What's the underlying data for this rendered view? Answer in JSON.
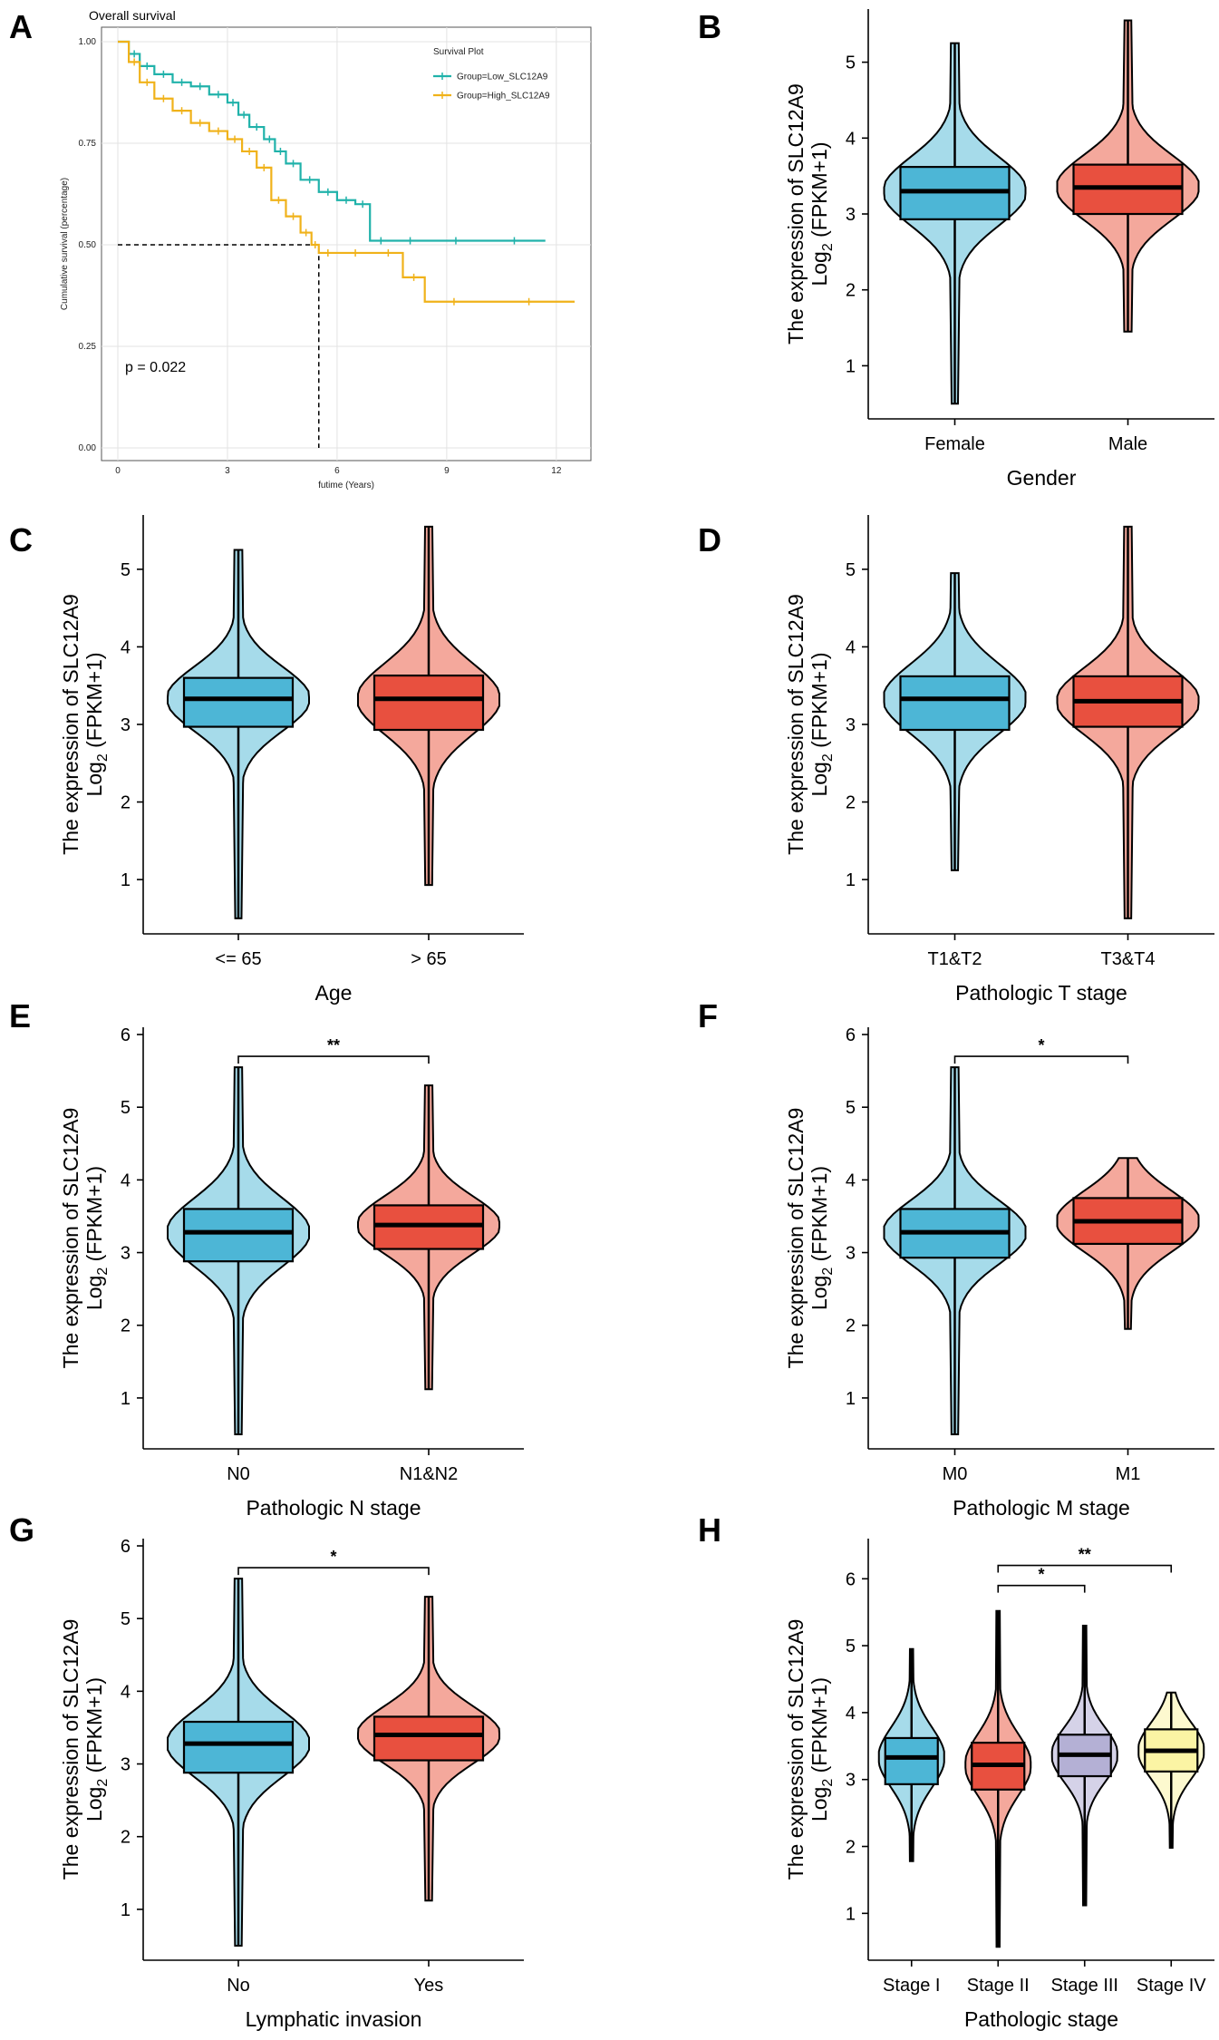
{
  "chart_data": [
    {
      "panel": "A",
      "type": "line",
      "title": "Overall survival",
      "xlabel": "futime (Years)",
      "ylabel": "Cumulative survival (percentage)",
      "xlim": [
        0,
        12.5
      ],
      "ylim": [
        0,
        1.0
      ],
      "xticks": [
        0,
        3,
        6,
        9,
        12
      ],
      "yticks": [
        "0.00",
        "0.25",
        "0.50",
        "0.75",
        "1.00"
      ],
      "legend_title": "Survival Plot",
      "legend_position": "top-right",
      "grid": true,
      "annotation": "p = 0.022",
      "median_line": {
        "y": 0.5,
        "x": 5.5
      },
      "series": [
        {
          "name": "Group=Low_SLC12A9",
          "color": "#20b2aa",
          "x": [
            0,
            0.3,
            0.6,
            1.0,
            1.5,
            2.0,
            2.5,
            3.0,
            3.3,
            3.6,
            4.0,
            4.3,
            4.6,
            5.0,
            5.5,
            6.0,
            6.5,
            6.9,
            7.5,
            8.5,
            10,
            11.7
          ],
          "y": [
            1.0,
            0.97,
            0.94,
            0.92,
            0.9,
            0.89,
            0.87,
            0.85,
            0.82,
            0.79,
            0.76,
            0.73,
            0.7,
            0.66,
            0.63,
            0.61,
            0.6,
            0.51,
            0.51,
            0.51,
            0.51,
            0.51
          ]
        },
        {
          "name": "Group=High_SLC12A9",
          "color": "#f0b21a",
          "x": [
            0,
            0.3,
            0.6,
            1.0,
            1.5,
            2.0,
            2.5,
            3.0,
            3.4,
            3.8,
            4.2,
            4.6,
            5.0,
            5.3,
            5.5,
            6.0,
            7.0,
            7.8,
            8.4,
            10,
            12.5
          ],
          "y": [
            1.0,
            0.95,
            0.9,
            0.86,
            0.83,
            0.8,
            0.78,
            0.76,
            0.73,
            0.69,
            0.61,
            0.57,
            0.53,
            0.5,
            0.48,
            0.48,
            0.48,
            0.42,
            0.36,
            0.36,
            0.36
          ]
        }
      ]
    },
    {
      "panel": "B",
      "type": "violin-box",
      "ylabel": "The expression of SLC12A9",
      "ylabel2": "Log",
      "ylabel2_sub": "2",
      "ylabel2_rest": " (FPKM+1)",
      "xlabel": "Gender",
      "ylim": [
        0.3,
        5.7
      ],
      "yticks": [
        1,
        2,
        3,
        4,
        5
      ],
      "significance": [],
      "groups": [
        {
          "label": "Female",
          "fill": "#4db6d6",
          "violin_fill": "#a6dbea",
          "min": 0.5,
          "q1": 2.93,
          "median": 3.3,
          "q3": 3.62,
          "max": 5.25
        },
        {
          "label": "Male",
          "fill": "#e8503f",
          "violin_fill": "#f4a89c",
          "min": 1.45,
          "q1": 3.0,
          "median": 3.35,
          "q3": 3.65,
          "max": 5.55
        }
      ]
    },
    {
      "panel": "C",
      "type": "violin-box",
      "ylabel": "The expression of SLC12A9",
      "ylabel2": "Log",
      "ylabel2_sub": "2",
      "ylabel2_rest": " (FPKM+1)",
      "xlabel": "Age",
      "ylim": [
        0.3,
        5.7
      ],
      "yticks": [
        1,
        2,
        3,
        4,
        5
      ],
      "significance": [],
      "groups": [
        {
          "label": "<= 65",
          "fill": "#4db6d6",
          "violin_fill": "#a6dbea",
          "min": 0.5,
          "q1": 2.97,
          "median": 3.33,
          "q3": 3.6,
          "max": 5.25
        },
        {
          "label": "> 65",
          "fill": "#e8503f",
          "violin_fill": "#f4a89c",
          "min": 0.93,
          "q1": 2.93,
          "median": 3.33,
          "q3": 3.63,
          "max": 5.55
        }
      ]
    },
    {
      "panel": "D",
      "type": "violin-box",
      "ylabel": "The expression of SLC12A9",
      "ylabel2": "Log",
      "ylabel2_sub": "2",
      "ylabel2_rest": " (FPKM+1)",
      "xlabel": "Pathologic T stage",
      "ylim": [
        0.3,
        5.7
      ],
      "yticks": [
        1,
        2,
        3,
        4,
        5
      ],
      "significance": [],
      "groups": [
        {
          "label": "T1&T2",
          "fill": "#4db6d6",
          "violin_fill": "#a6dbea",
          "min": 1.12,
          "q1": 2.93,
          "median": 3.33,
          "q3": 3.62,
          "max": 4.95
        },
        {
          "label": "T3&T4",
          "fill": "#e8503f",
          "violin_fill": "#f4a89c",
          "min": 0.5,
          "q1": 2.97,
          "median": 3.3,
          "q3": 3.62,
          "max": 5.55
        }
      ]
    },
    {
      "panel": "E",
      "type": "violin-box",
      "ylabel": "The expression of SLC12A9",
      "ylabel2": "Log",
      "ylabel2_sub": "2",
      "ylabel2_rest": " (FPKM+1)",
      "xlabel": "Pathologic N stage",
      "ylim": [
        0.3,
        6.1
      ],
      "yticks": [
        1,
        2,
        3,
        4,
        5,
        6
      ],
      "significance": [
        {
          "from": 0,
          "to": 1,
          "y": 5.7,
          "label": "**"
        }
      ],
      "groups": [
        {
          "label": "N0",
          "fill": "#4db6d6",
          "violin_fill": "#a6dbea",
          "min": 0.5,
          "q1": 2.88,
          "median": 3.28,
          "q3": 3.6,
          "max": 5.55
        },
        {
          "label": "N1&N2",
          "fill": "#e8503f",
          "violin_fill": "#f4a89c",
          "min": 1.12,
          "q1": 3.05,
          "median": 3.38,
          "q3": 3.65,
          "max": 5.3
        }
      ]
    },
    {
      "panel": "F",
      "type": "violin-box",
      "ylabel": "The expression of SLC12A9",
      "ylabel2": "Log",
      "ylabel2_sub": "2",
      "ylabel2_rest": " (FPKM+1)",
      "xlabel": "Pathologic M stage",
      "ylim": [
        0.3,
        6.1
      ],
      "yticks": [
        1,
        2,
        3,
        4,
        5,
        6
      ],
      "significance": [
        {
          "from": 0,
          "to": 1,
          "y": 5.7,
          "label": "*"
        }
      ],
      "groups": [
        {
          "label": "M0",
          "fill": "#4db6d6",
          "violin_fill": "#a6dbea",
          "min": 0.5,
          "q1": 2.93,
          "median": 3.28,
          "q3": 3.6,
          "max": 5.55
        },
        {
          "label": "M1",
          "fill": "#e8503f",
          "violin_fill": "#f4a89c",
          "min": 1.95,
          "q1": 3.12,
          "median": 3.43,
          "q3": 3.75,
          "max": 4.3
        }
      ]
    },
    {
      "panel": "G",
      "type": "violin-box",
      "ylabel": "The expression of SLC12A9",
      "ylabel2": "Log",
      "ylabel2_sub": "2",
      "ylabel2_rest": " (FPKM+1)",
      "xlabel": "Lymphatic invasion",
      "ylim": [
        0.3,
        6.1
      ],
      "yticks": [
        1,
        2,
        3,
        4,
        5,
        6
      ],
      "significance": [
        {
          "from": 0,
          "to": 1,
          "y": 5.7,
          "label": "*"
        }
      ],
      "groups": [
        {
          "label": "No",
          "fill": "#4db6d6",
          "violin_fill": "#a6dbea",
          "min": 0.5,
          "q1": 2.88,
          "median": 3.28,
          "q3": 3.58,
          "max": 5.55
        },
        {
          "label": "Yes",
          "fill": "#e8503f",
          "violin_fill": "#f4a89c",
          "min": 1.12,
          "q1": 3.05,
          "median": 3.4,
          "q3": 3.65,
          "max": 5.3
        }
      ]
    },
    {
      "panel": "H",
      "type": "violin-box",
      "ylabel": "The expression of SLC12A9",
      "ylabel2": "Log",
      "ylabel2_sub": "2",
      "ylabel2_rest": " (FPKM+1)",
      "xlabel": "Pathologic stage",
      "ylim": [
        0.3,
        6.6
      ],
      "yticks": [
        1,
        2,
        3,
        4,
        5,
        6
      ],
      "significance": [
        {
          "from": 1,
          "to": 2,
          "y": 5.9,
          "label": "*"
        },
        {
          "from": 1,
          "to": 3,
          "y": 6.2,
          "label": "**"
        }
      ],
      "groups": [
        {
          "label": "Stage I",
          "fill": "#4db6d6",
          "violin_fill": "#a6dbea",
          "min": 1.78,
          "q1": 2.93,
          "median": 3.33,
          "q3": 3.62,
          "max": 4.95
        },
        {
          "label": "Stage II",
          "fill": "#e8503f",
          "violin_fill": "#f4a89c",
          "min": 0.5,
          "q1": 2.85,
          "median": 3.22,
          "q3": 3.55,
          "max": 5.52
        },
        {
          "label": "Stage III",
          "fill": "#b4b0d5",
          "violin_fill": "#d5d2e8",
          "min": 1.12,
          "q1": 3.05,
          "median": 3.37,
          "q3": 3.67,
          "max": 5.3
        },
        {
          "label": "Stage IV",
          "fill": "#fbf4a4",
          "violin_fill": "#fdf9cf",
          "min": 1.98,
          "q1": 3.12,
          "median": 3.43,
          "q3": 3.75,
          "max": 4.3
        }
      ]
    }
  ]
}
